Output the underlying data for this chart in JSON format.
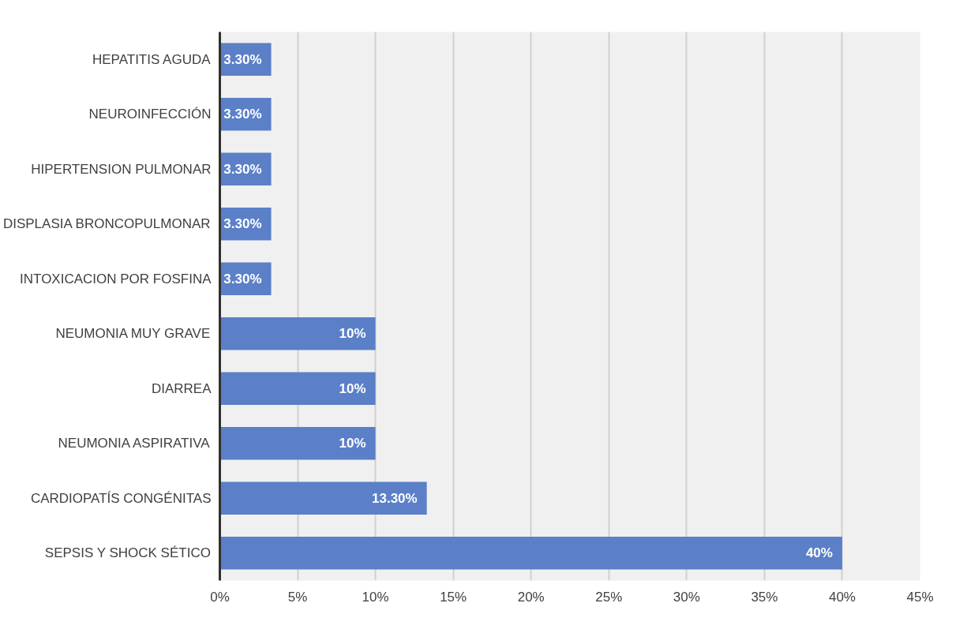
{
  "chart_data": {
    "type": "bar",
    "orientation": "horizontal",
    "categories": [
      "HEPATITIS AGUDA",
      "NEUROINFECCIÓN",
      "HIPERTENSION PULMONAR",
      "DISPLASIA BRONCOPULMONAR",
      "INTOXICACION POR FOSFINA",
      "NEUMONIA MUY GRAVE",
      "DIARREA",
      "NEUMONIA ASPIRATIVA",
      "CARDIOPATÍS CONGÉNITAS",
      "SEPSIS Y SHOCK SÉTICO"
    ],
    "values": [
      3.3,
      3.3,
      3.3,
      3.3,
      3.3,
      10,
      10,
      10,
      13.3,
      40
    ],
    "value_labels": [
      "3.30%",
      "3.30%",
      "3.30%",
      "3.30%",
      "3.30%",
      "10%",
      "10%",
      "10%",
      "13.30%",
      "40%"
    ],
    "color": "#5b80c8",
    "xlim": [
      0,
      45
    ],
    "xticks": [
      {
        "value": 0,
        "label": "0%"
      },
      {
        "value": 5,
        "label": "5%"
      },
      {
        "value": 10,
        "label": "10%"
      },
      {
        "value": 15,
        "label": "15%"
      },
      {
        "value": 20,
        "label": "20%"
      },
      {
        "value": 25,
        "label": "25%"
      },
      {
        "value": 30,
        "label": "30%"
      },
      {
        "value": 35,
        "label": "35%"
      },
      {
        "value": 40,
        "label": "40%"
      },
      {
        "value": 45,
        "label": "45%"
      }
    ],
    "grid": "x"
  }
}
